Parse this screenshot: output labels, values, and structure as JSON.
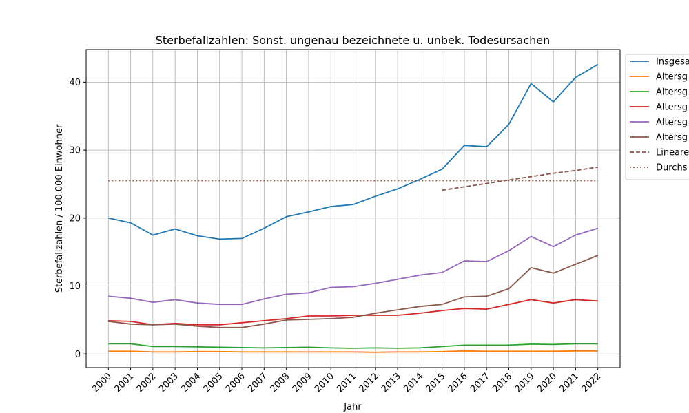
{
  "chart_data": {
    "type": "line",
    "title": "Sterbefallzahlen: Sonst. ungenau bezeichnete u. unbek. Todesursachen",
    "xlabel": "Jahr",
    "ylabel": "Sterbefallzahlen / 100.000 Einwohner",
    "x": [
      2000,
      2001,
      2002,
      2003,
      2004,
      2005,
      2006,
      2007,
      2008,
      2009,
      2010,
      2011,
      2012,
      2013,
      2014,
      2015,
      2016,
      2017,
      2018,
      2019,
      2020,
      2021,
      2022
    ],
    "xlim": [
      1999.0,
      2023.0
    ],
    "ylim": [
      -2.0,
      44.8
    ],
    "yticks": [
      0,
      10,
      20,
      30,
      40
    ],
    "grid": true,
    "legend_position": "upper-right-outside",
    "series": [
      {
        "name": "Insgesa",
        "color": "#1f77b4",
        "style": "solid",
        "values": [
          20.0,
          19.3,
          17.5,
          18.4,
          17.4,
          16.9,
          17.0,
          18.5,
          20.2,
          20.9,
          21.7,
          22.0,
          23.2,
          24.3,
          25.7,
          27.2,
          30.7,
          30.5,
          33.8,
          39.8,
          37.1,
          40.7,
          42.6
        ]
      },
      {
        "name": "Altersg",
        "color": "#ff7f0e",
        "style": "solid",
        "values": [
          0.4,
          0.4,
          0.3,
          0.3,
          0.35,
          0.35,
          0.3,
          0.3,
          0.3,
          0.3,
          0.3,
          0.3,
          0.25,
          0.3,
          0.3,
          0.35,
          0.45,
          0.4,
          0.4,
          0.4,
          0.4,
          0.45,
          0.45
        ]
      },
      {
        "name": "Altersg",
        "color": "#2ca02c",
        "style": "solid",
        "values": [
          1.5,
          1.5,
          1.1,
          1.1,
          1.05,
          1.0,
          0.95,
          0.9,
          0.95,
          1.0,
          0.9,
          0.85,
          0.9,
          0.85,
          0.9,
          1.1,
          1.3,
          1.3,
          1.3,
          1.45,
          1.4,
          1.5,
          1.5
        ]
      },
      {
        "name": "Altersg",
        "color": "#d62728",
        "style": "solid",
        "values": [
          4.9,
          4.8,
          4.3,
          4.5,
          4.3,
          4.3,
          4.6,
          4.9,
          5.2,
          5.6,
          5.6,
          5.7,
          5.7,
          5.7,
          6.0,
          6.4,
          6.7,
          6.6,
          7.3,
          8.0,
          7.5,
          8.0,
          7.8
        ]
      },
      {
        "name": "Altersg",
        "color": "#9467bd",
        "style": "solid",
        "values": [
          8.5,
          8.2,
          7.6,
          8.0,
          7.5,
          7.3,
          7.3,
          8.1,
          8.8,
          9.0,
          9.8,
          9.9,
          10.4,
          11.0,
          11.6,
          12.0,
          13.7,
          13.6,
          15.2,
          17.3,
          15.8,
          17.5,
          18.5
        ]
      },
      {
        "name": "Altersg",
        "color": "#8c564b",
        "style": "solid",
        "values": [
          4.8,
          4.4,
          4.3,
          4.4,
          4.1,
          3.9,
          3.9,
          4.4,
          5.0,
          5.1,
          5.2,
          5.4,
          6.0,
          6.5,
          7.0,
          7.3,
          8.4,
          8.5,
          9.6,
          12.7,
          11.9,
          13.2,
          14.5
        ]
      },
      {
        "name": "Lineare",
        "color": "#8c564b",
        "style": "dashed",
        "x": [
          2015,
          2016,
          2017,
          2018,
          2019,
          2020,
          2021,
          2022
        ],
        "values": [
          24.1,
          24.6,
          25.1,
          25.6,
          26.1,
          26.6,
          27.0,
          27.5
        ]
      },
      {
        "name": "Durchs",
        "color": "#8c564b",
        "style": "dotted",
        "x": [
          2000,
          2022
        ],
        "values": [
          25.5,
          25.5
        ]
      }
    ]
  }
}
